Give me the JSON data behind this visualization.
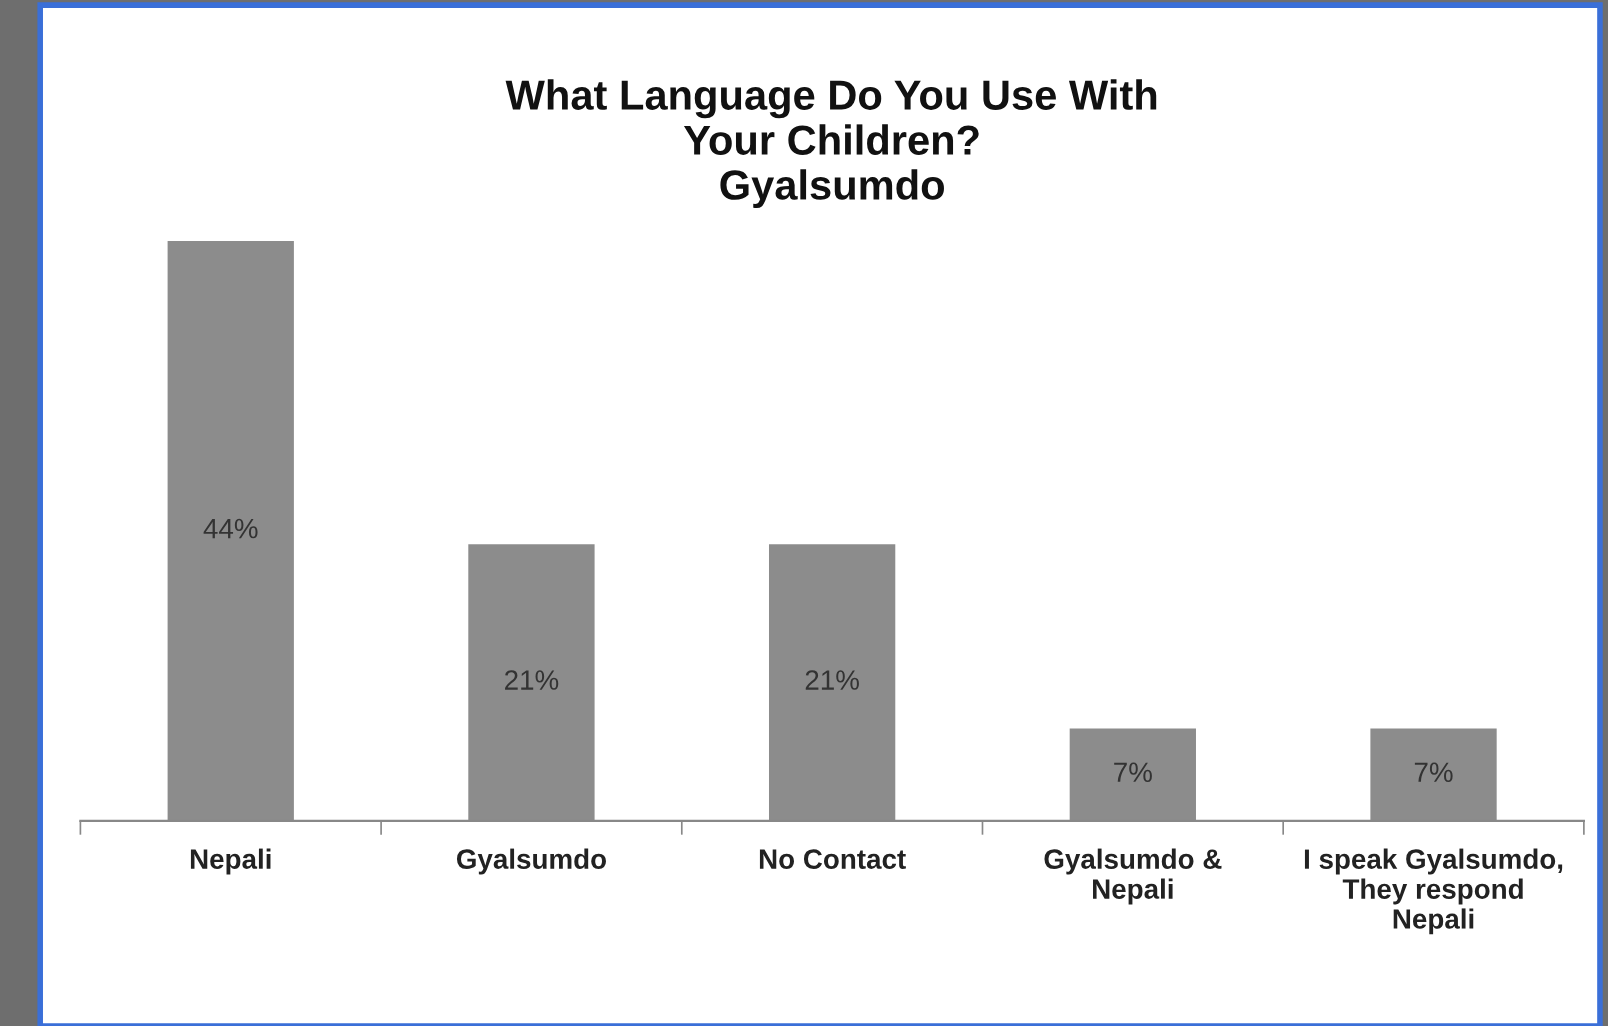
{
  "chart_data": {
    "type": "bar",
    "title": "What Language Do You Use With\nYour Children?\nGyalsumdo",
    "categories": [
      "Nepali",
      "Gyalsumdo",
      "No Contact",
      "Gyalsumdo &\nNepali",
      "I speak Gyalsumdo,\nThey respond\nNepali"
    ],
    "values": [
      44,
      21,
      21,
      7,
      7
    ],
    "value_labels": [
      "44%",
      "21%",
      "21%",
      "7%",
      "7%"
    ],
    "color": "#8c8c8c"
  }
}
